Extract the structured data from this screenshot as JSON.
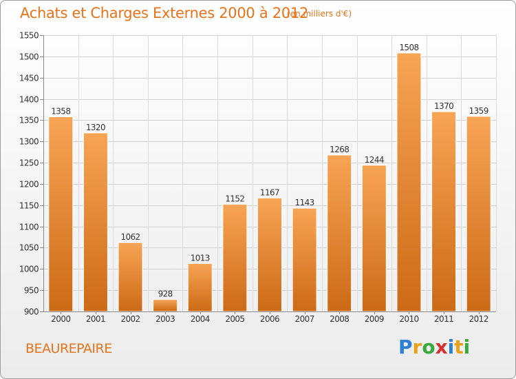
{
  "title": "Achats et Charges Externes 2000 à 2012",
  "subtitle": "(en milliers d'€)",
  "location": "BEAUREPAIRE",
  "logo": {
    "letters": [
      "P",
      "r",
      "o",
      "x",
      "i",
      "t",
      "i"
    ],
    "colors": [
      "#2b7fd4",
      "#e8a21a",
      "#3aa83a",
      "#d62f2f",
      "#2b7fd4",
      "#e8a21a",
      "#3aa83a"
    ]
  },
  "colors": {
    "accent": "#e8731a",
    "bar_light": "#f7a455",
    "bar_dark": "#cc6a16"
  },
  "chart_data": {
    "type": "bar",
    "title": "Achats et Charges Externes 2000 à 2012",
    "xlabel": "",
    "ylabel": "",
    "categories": [
      "2000",
      "2001",
      "2002",
      "2003",
      "2004",
      "2005",
      "2006",
      "2007",
      "2008",
      "2009",
      "2010",
      "2011",
      "2012"
    ],
    "values": [
      1358,
      1320,
      1062,
      928,
      1013,
      1152,
      1167,
      1143,
      1268,
      1244,
      1508,
      1370,
      1359
    ],
    "ylim": [
      900,
      1550
    ],
    "yticks": [
      900,
      950,
      1000,
      1050,
      1100,
      1150,
      1200,
      1250,
      1300,
      1350,
      1400,
      1450,
      1500,
      1550
    ],
    "grid": true
  }
}
